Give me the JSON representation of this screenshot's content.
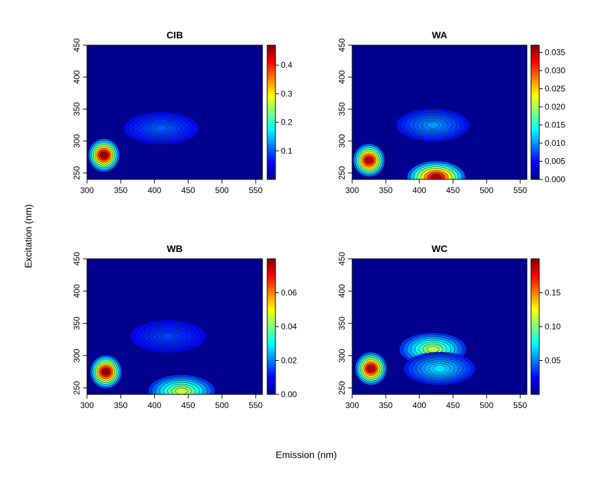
{
  "figure": {
    "xlabel": "Emission (nm)",
    "ylabel": "Excitation (nm)"
  },
  "colormap": [
    "#00008F",
    "#0000FF",
    "#0080FF",
    "#00FFFF",
    "#80FF80",
    "#FFFF00",
    "#FF8000",
    "#FF0000",
    "#800000"
  ],
  "chart_data": [
    {
      "type": "heatmap",
      "title": "CIB",
      "xlim": [
        300,
        560
      ],
      "ylim": [
        240,
        450
      ],
      "x_ticks": [
        "300",
        "350",
        "400",
        "450",
        "500",
        "550"
      ],
      "y_ticks": [
        "250",
        "300",
        "350",
        "400",
        "450"
      ],
      "zlim": [
        0,
        0.47
      ],
      "colorbar_ticks": [
        "0.1",
        "0.2",
        "0.3",
        "0.4"
      ],
      "peaks": [
        {
          "em": 325,
          "ex": 278,
          "value": 0.46
        },
        {
          "em": 410,
          "ex": 320,
          "value": 0.1
        }
      ]
    },
    {
      "type": "heatmap",
      "title": "WA",
      "xlim": [
        300,
        560
      ],
      "ylim": [
        240,
        450
      ],
      "x_ticks": [
        "300",
        "350",
        "400",
        "450",
        "500",
        "550"
      ],
      "y_ticks": [
        "250",
        "300",
        "350",
        "400",
        "450"
      ],
      "zlim": [
        0,
        0.037
      ],
      "colorbar_ticks": [
        "0.000",
        "0.005",
        "0.010",
        "0.015",
        "0.020",
        "0.025",
        "0.030",
        "0.035"
      ],
      "peaks": [
        {
          "em": 325,
          "ex": 270,
          "value": 0.035
        },
        {
          "em": 425,
          "ex": 243,
          "value": 0.035
        },
        {
          "em": 420,
          "ex": 325,
          "value": 0.01
        }
      ]
    },
    {
      "type": "heatmap",
      "title": "WB",
      "xlim": [
        300,
        560
      ],
      "ylim": [
        240,
        450
      ],
      "x_ticks": [
        "300",
        "350",
        "400",
        "450",
        "500",
        "550"
      ],
      "y_ticks": [
        "250",
        "300",
        "350",
        "400",
        "450"
      ],
      "zlim": [
        0,
        0.08
      ],
      "colorbar_ticks": [
        "0.00",
        "0.02",
        "0.04",
        "0.06"
      ],
      "peaks": [
        {
          "em": 328,
          "ex": 275,
          "value": 0.078
        },
        {
          "em": 440,
          "ex": 245,
          "value": 0.045
        },
        {
          "em": 420,
          "ex": 330,
          "value": 0.015
        }
      ]
    },
    {
      "type": "heatmap",
      "title": "WC",
      "xlim": [
        300,
        560
      ],
      "ylim": [
        240,
        450
      ],
      "x_ticks": [
        "300",
        "350",
        "400",
        "450",
        "500",
        "550"
      ],
      "y_ticks": [
        "250",
        "300",
        "350",
        "400",
        "450"
      ],
      "zlim": [
        0,
        0.2
      ],
      "colorbar_ticks": [
        "0.05",
        "0.10",
        "0.15"
      ],
      "peaks": [
        {
          "em": 328,
          "ex": 280,
          "value": 0.19
        },
        {
          "em": 420,
          "ex": 310,
          "value": 0.11
        },
        {
          "em": 430,
          "ex": 280,
          "value": 0.07
        }
      ]
    }
  ]
}
